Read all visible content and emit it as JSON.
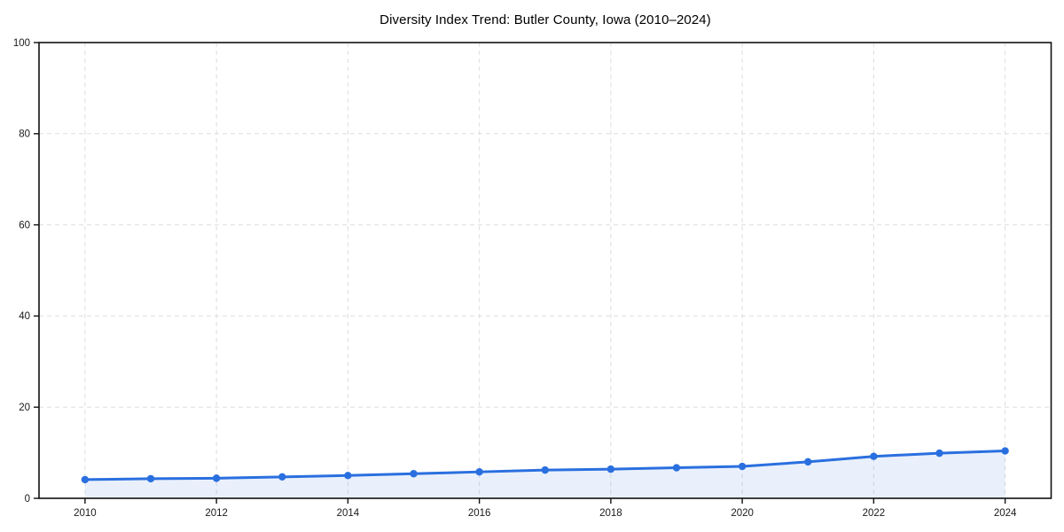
{
  "title": "Diversity Index Trend: Butler County, Iowa (2010–2024)",
  "chart_data": {
    "type": "line",
    "title": "Diversity Index Trend: Butler County, Iowa (2010–2024)",
    "x": [
      2010,
      2011,
      2012,
      2013,
      2014,
      2015,
      2016,
      2017,
      2018,
      2019,
      2020,
      2021,
      2022,
      2023,
      2024
    ],
    "series": [
      {
        "name": "Diversity Index",
        "values": [
          4.1,
          4.3,
          4.4,
          4.7,
          5.0,
          5.4,
          5.8,
          6.2,
          6.4,
          6.7,
          7.0,
          8.0,
          9.2,
          9.9,
          10.4
        ]
      }
    ],
    "xlabel": "",
    "ylabel": "",
    "xlim": [
      2009.3,
      2024.7
    ],
    "ylim": [
      0,
      100
    ],
    "xticks": [
      2010,
      2012,
      2014,
      2016,
      2018,
      2020,
      2022,
      2024
    ],
    "yticks": [
      0,
      20,
      40,
      60,
      80,
      100
    ],
    "grid": "dashed",
    "legend": "none",
    "colors": {
      "line": "#2a6fdf",
      "marker": "#2a6fdf",
      "area_fill": "#2a6fdf",
      "area_opacity": 0.1,
      "grid": "#dedede",
      "spine": "#111111",
      "tick_label": "#1a1a1a",
      "title": "#000000",
      "background": "#ffffff"
    },
    "marker": "circle"
  }
}
